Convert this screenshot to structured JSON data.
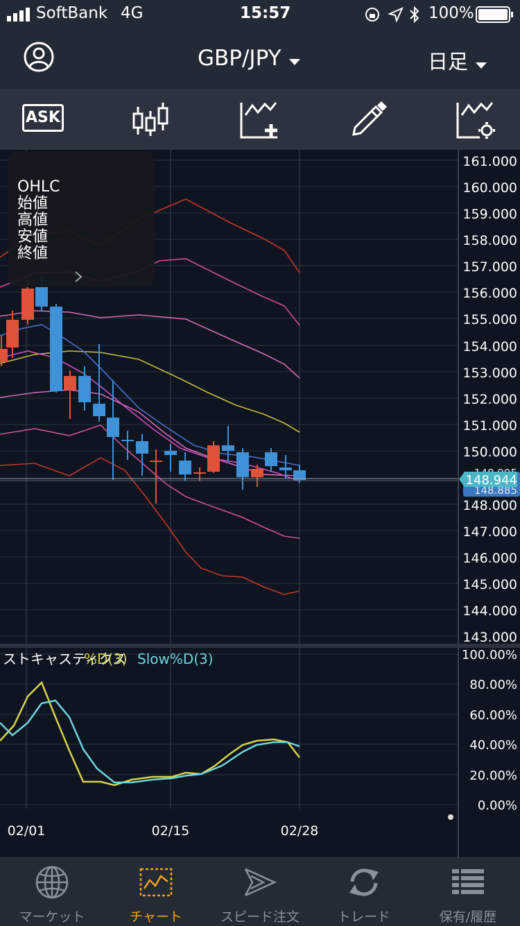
{
  "status_bar": {
    "carrier": "SoftBank",
    "network": "4G",
    "time": "15:57",
    "battery": "100%"
  },
  "header": {
    "pair": "GBP/JPY",
    "timeframe": "日足"
  },
  "toolbar": {
    "ask_label": "ASK"
  },
  "ohlc_panel": {
    "title": "OHLC",
    "open": "始値",
    "high": "高値",
    "low": "安値",
    "close": "終値"
  },
  "price_axis": {
    "ticks": [
      "161.000",
      "160.000",
      "159.000",
      "158.000",
      "157.000",
      "156.000",
      "155.000",
      "154.000",
      "153.000",
      "152.000",
      "151.000",
      "150.000",
      "148.000",
      "147.000",
      "146.000",
      "145.000",
      "144.000",
      "143.000"
    ]
  },
  "price_badges": {
    "top": "148.944",
    "hidden_above": "148.995",
    "hidden_below": "148.885"
  },
  "oscillator": {
    "name": "ストキャスティクス",
    "d_label": "%D(3)",
    "slow_label": "Slow%D(3)",
    "ticks": [
      "100.00%",
      "80.00%",
      "60.00%",
      "40.00%",
      "20.00%",
      "0.00%"
    ]
  },
  "dates": [
    "02/01",
    "02/15",
    "02/28"
  ],
  "colors": {
    "up": "#e0533b",
    "down": "#3f91d8",
    "d_line": "#d8d34a",
    "slow_line": "#6fd6dc",
    "accent": "#f0a418"
  },
  "tabs": [
    {
      "label": "マーケット",
      "icon": "globe-icon"
    },
    {
      "label": "チャート",
      "icon": "chart-icon",
      "active": true
    },
    {
      "label": "スピード注文",
      "icon": "speed-order-icon"
    },
    {
      "label": "トレード",
      "icon": "trade-icon"
    },
    {
      "label": "保有/履歴",
      "icon": "holdings-icon"
    }
  ]
}
